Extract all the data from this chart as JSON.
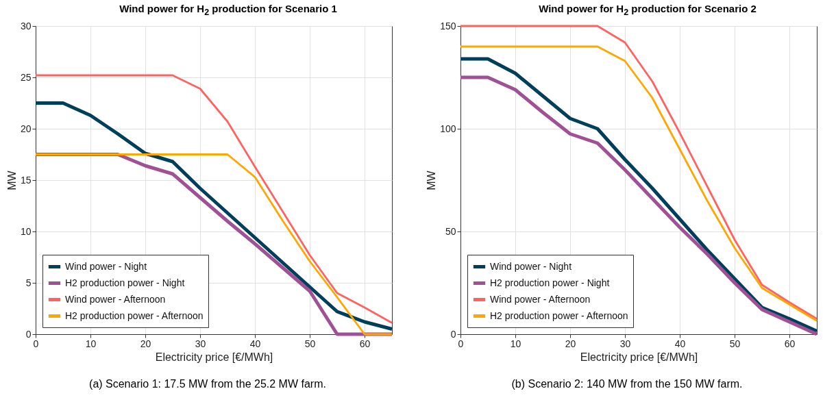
{
  "chart_data": [
    {
      "type": "line",
      "title": "Wind power for H$_{2}$ production for Scenario 1",
      "xlabel": "Electricity price [€/MWh]",
      "ylabel": "MW",
      "annotations": [
        "(a)  Scenario 1: 17.5 MW from the 25.2 MW farm."
      ],
      "x": [
        0,
        5,
        10,
        15,
        20,
        25,
        30,
        35,
        40,
        45,
        50,
        55,
        60,
        65
      ],
      "series": [
        {
          "name": "Wind power - Night",
          "color": "#003f5c",
          "values": [
            22.5,
            22.5,
            21.3,
            19.5,
            17.6,
            16.8,
            14.2,
            11.8,
            9.4,
            7.0,
            4.6,
            2.2,
            1.2,
            0.5
          ]
        },
        {
          "name": "H2 production power - Night",
          "color": "#a05195",
          "values": [
            17.5,
            17.5,
            17.5,
            17.5,
            16.4,
            15.6,
            13.3,
            11.0,
            8.8,
            6.5,
            4.2,
            0,
            0,
            0
          ]
        },
        {
          "name": "Wind power - Afternoon",
          "color": "#ff6361",
          "values": [
            25.2,
            25.2,
            25.2,
            25.2,
            25.2,
            25.2,
            23.9,
            20.7,
            16.3,
            12.0,
            7.7,
            4.0,
            2.6,
            1.1
          ]
        },
        {
          "name": "H2 production power - Afternoon",
          "color": "#ffa600",
          "values": [
            17.5,
            17.5,
            17.5,
            17.5,
            17.5,
            17.5,
            17.5,
            17.5,
            15.3,
            11.1,
            7.1,
            3.6,
            0,
            0
          ]
        }
      ],
      "xlim": [
        0,
        65
      ],
      "xticks": [
        0,
        10,
        20,
        30,
        40,
        50,
        60
      ],
      "ylim": [
        0,
        30
      ],
      "yticks": [
        0,
        5,
        10,
        15,
        20,
        25,
        30
      ],
      "grid": true,
      "legend": "bottom left"
    },
    {
      "type": "line",
      "title": "Wind power for H$_{2}$ production for Scenario 2",
      "xlabel": "Electricity price [€/MWh]",
      "ylabel": "MW",
      "annotations": [
        "(b)  Scenario 2: 140 MW from the 150 MW farm."
      ],
      "x": [
        0,
        5,
        10,
        15,
        20,
        25,
        30,
        35,
        40,
        45,
        50,
        55,
        60,
        65
      ],
      "series": [
        {
          "name": "Wind power - Night",
          "color": "#003f5c",
          "values": [
            134,
            134,
            127,
            116,
            105,
            100,
            85,
            71,
            56,
            41,
            27,
            13,
            7.5,
            1.5
          ]
        },
        {
          "name": "H2 production power - Night",
          "color": "#a05195",
          "values": [
            125,
            125,
            119,
            108,
            97.5,
            93,
            80,
            66,
            52,
            39,
            25,
            12,
            6,
            0
          ]
        },
        {
          "name": "Wind power - Afternoon",
          "color": "#ff6361",
          "values": [
            150,
            150,
            150,
            150,
            150,
            150,
            142,
            123,
            98,
            72,
            46,
            24,
            15.5,
            7.5
          ]
        },
        {
          "name": "H2 production power - Afternoon",
          "color": "#ffa600",
          "values": [
            140,
            140,
            140,
            140,
            140,
            140,
            133,
            115,
            90,
            65,
            42,
            22.5,
            14.5,
            6.5
          ]
        }
      ],
      "xlim": [
        0,
        65
      ],
      "xticks": [
        0,
        10,
        20,
        30,
        40,
        50,
        60
      ],
      "ylim": [
        0,
        150
      ],
      "yticks": [
        0,
        50,
        100,
        150
      ],
      "grid": true,
      "legend": "bottom left"
    }
  ]
}
